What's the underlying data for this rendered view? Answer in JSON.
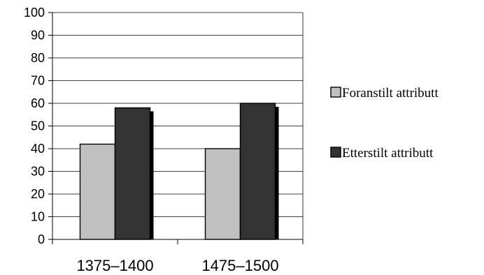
{
  "chart_data": {
    "type": "bar",
    "categories": [
      "1375–1400",
      "1475–1500"
    ],
    "series": [
      {
        "name": "Foranstilt attributt",
        "values": [
          42,
          40
        ],
        "color": "#c0c0c0"
      },
      {
        "name": "Etterstilt attributt",
        "values": [
          58,
          60
        ],
        "color": "#333333"
      }
    ],
    "ylim": [
      0,
      100
    ],
    "yticks": [
      "0",
      "10",
      "20",
      "30",
      "40",
      "50",
      "60",
      "70",
      "80",
      "90",
      "100"
    ],
    "grid": true,
    "legend": "right",
    "title": "",
    "xlabel": "",
    "ylabel": ""
  }
}
